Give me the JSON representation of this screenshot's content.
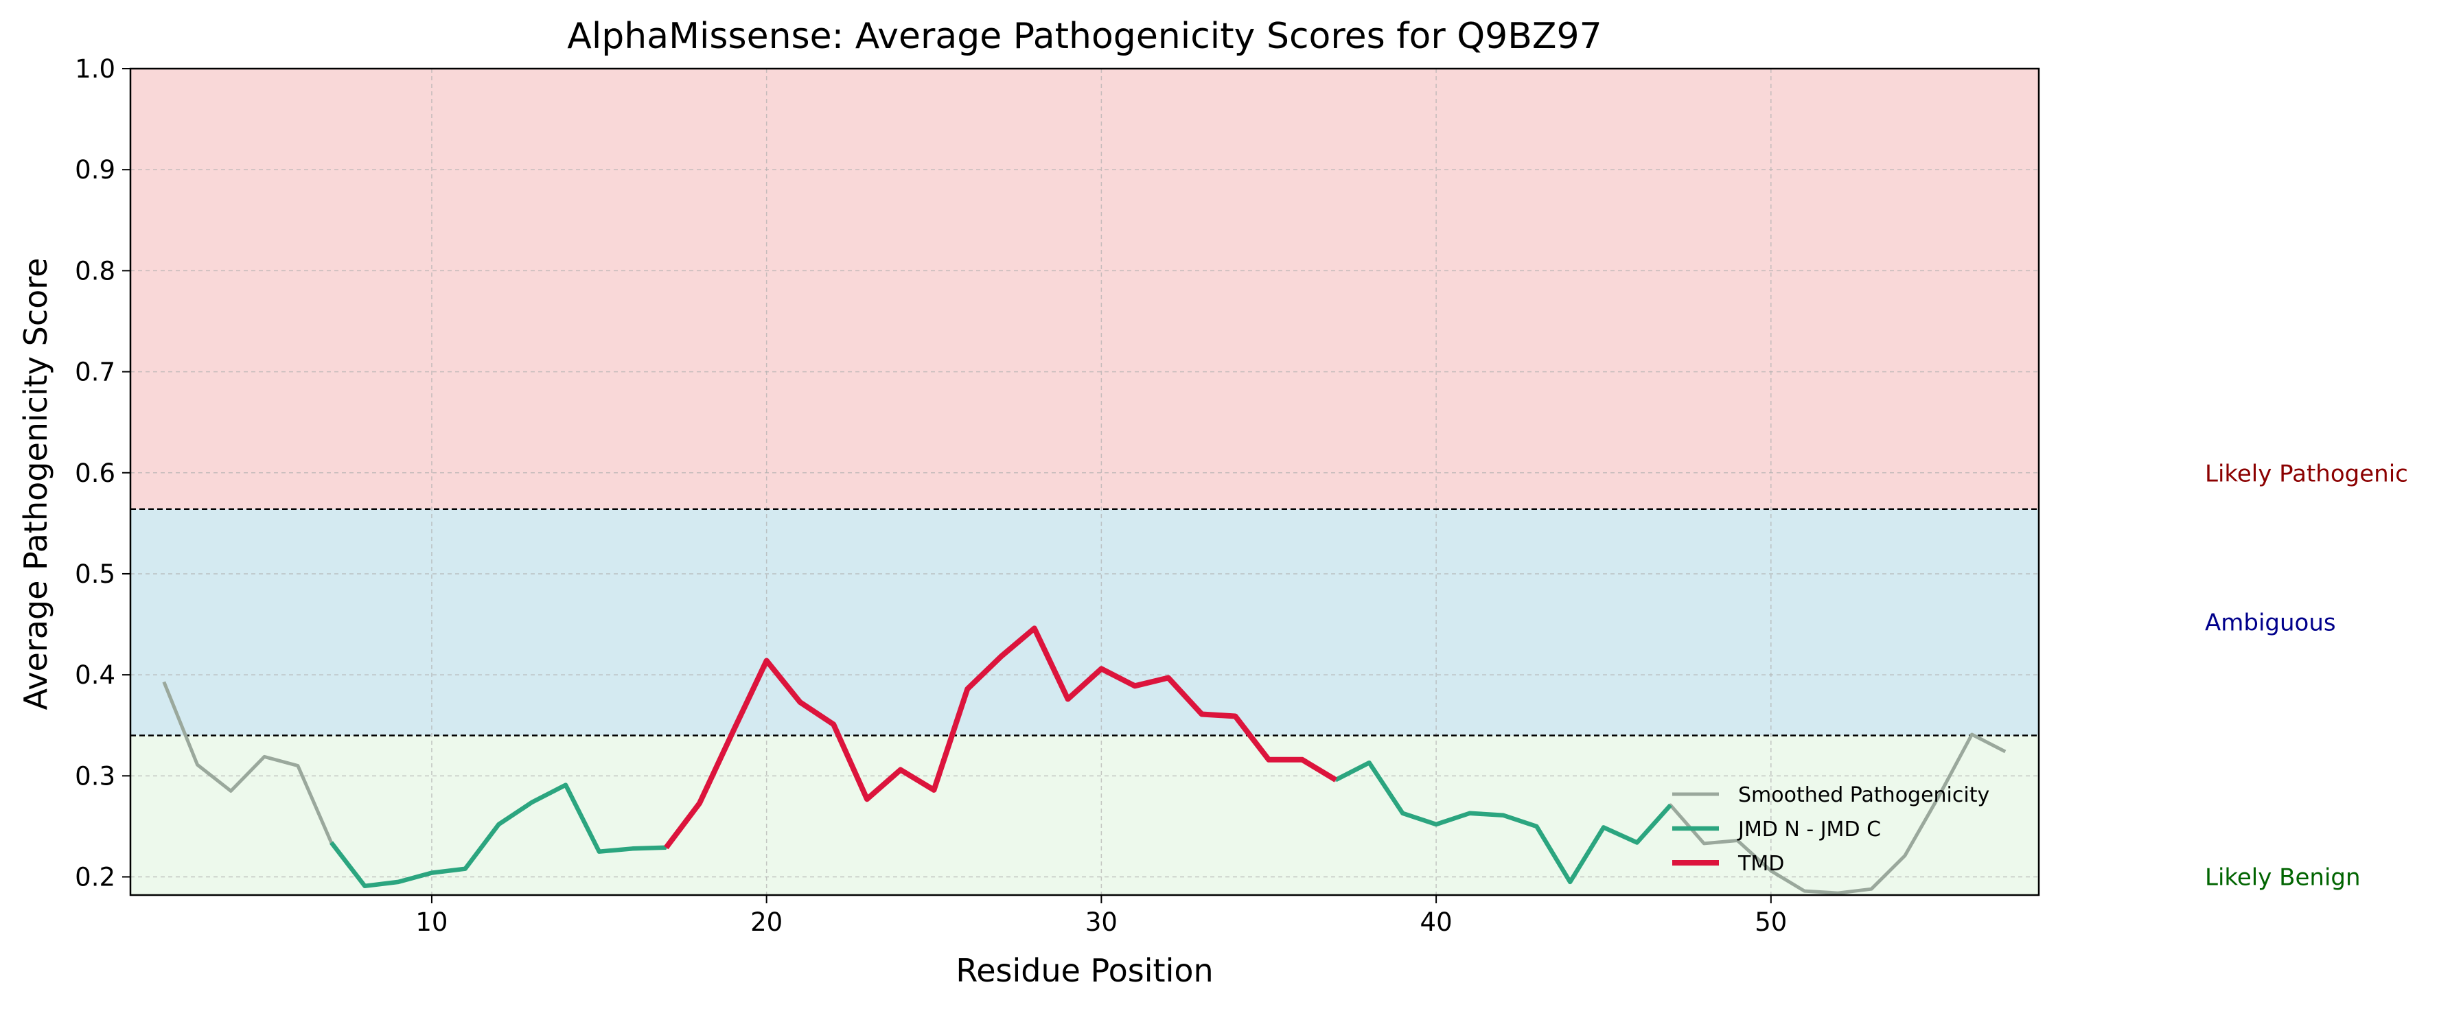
{
  "chart_data": {
    "type": "line",
    "title": "AlphaMissense: Average Pathogenicity Scores for Q9BZ97",
    "xlabel": "Residue Position",
    "ylabel": "Average Pathogenicity Score",
    "xlim": [
      1,
      58
    ],
    "ylim": [
      0.182,
      1.0
    ],
    "xticks": [
      10,
      20,
      30,
      40,
      50
    ],
    "yticks": [
      0.2,
      0.3,
      0.4,
      0.5,
      0.6,
      0.7,
      0.8,
      0.9,
      1.0
    ],
    "grid": true,
    "legend_position": "lower-right",
    "thresholds": [
      0.34,
      0.564
    ],
    "zones": [
      {
        "label": "Likely Benign",
        "from": 0.182,
        "to": 0.34,
        "color": "#edf9ec",
        "text_color": "#006400"
      },
      {
        "label": "Ambiguous",
        "from": 0.34,
        "to": 0.564,
        "color": "#d4eaf1",
        "text_color": "#00008b"
      },
      {
        "label": "Likely Pathogenic",
        "from": 0.564,
        "to": 1.0,
        "color": "#f9d8d8",
        "text_color": "#8b0000"
      }
    ],
    "x": [
      2,
      3,
      4,
      5,
      6,
      7,
      8,
      9,
      10,
      11,
      12,
      13,
      14,
      15,
      16,
      17,
      18,
      19,
      20,
      21,
      22,
      23,
      24,
      25,
      26,
      27,
      28,
      29,
      30,
      31,
      32,
      33,
      34,
      35,
      36,
      37,
      38,
      39,
      40,
      41,
      42,
      43,
      44,
      45,
      46,
      47,
      48,
      49,
      50,
      51,
      52,
      53,
      54,
      55,
      56,
      57
    ],
    "series": [
      {
        "name": "Smoothed Pathogenicity",
        "color": "#9aa89c",
        "values": [
          0.393,
          0.311,
          0.285,
          0.319,
          0.31,
          0.234,
          0.191,
          0.195,
          0.204,
          0.208,
          0.252,
          0.274,
          0.291,
          0.225,
          0.228,
          0.229,
          0.273,
          0.344,
          0.414,
          0.373,
          0.351,
          0.277,
          0.306,
          0.286,
          0.386,
          0.418,
          0.446,
          0.376,
          0.406,
          0.389,
          0.397,
          0.361,
          0.359,
          0.316,
          0.316,
          0.296,
          0.313,
          0.263,
          0.252,
          0.263,
          0.261,
          0.25,
          0.195,
          0.249,
          0.234,
          0.271,
          0.233,
          0.236,
          0.206,
          0.186,
          0.184,
          0.188,
          0.221,
          0.279,
          0.341,
          0.324
        ]
      },
      {
        "name": "JMD N - JMD C",
        "color": "#2ba57f",
        "x": [
          7,
          8,
          9,
          10,
          11,
          12,
          13,
          14,
          15,
          16,
          17,
          null,
          37,
          38,
          39,
          40,
          41,
          42,
          43,
          44,
          45,
          46,
          47
        ],
        "values": [
          0.234,
          0.191,
          0.195,
          0.204,
          0.208,
          0.252,
          0.274,
          0.291,
          0.225,
          0.228,
          0.229,
          null,
          0.296,
          0.313,
          0.263,
          0.252,
          0.263,
          0.261,
          0.25,
          0.195,
          0.249,
          0.234,
          0.271
        ]
      },
      {
        "name": "TMD",
        "color": "#dc143c",
        "x": [
          17,
          18,
          19,
          20,
          21,
          22,
          23,
          24,
          25,
          26,
          27,
          28,
          29,
          30,
          31,
          32,
          33,
          34,
          35,
          36,
          37
        ],
        "values": [
          0.229,
          0.273,
          0.344,
          0.414,
          0.373,
          0.351,
          0.277,
          0.306,
          0.286,
          0.386,
          0.418,
          0.446,
          0.376,
          0.406,
          0.389,
          0.397,
          0.361,
          0.359,
          0.316,
          0.316,
          0.296
        ]
      }
    ]
  }
}
